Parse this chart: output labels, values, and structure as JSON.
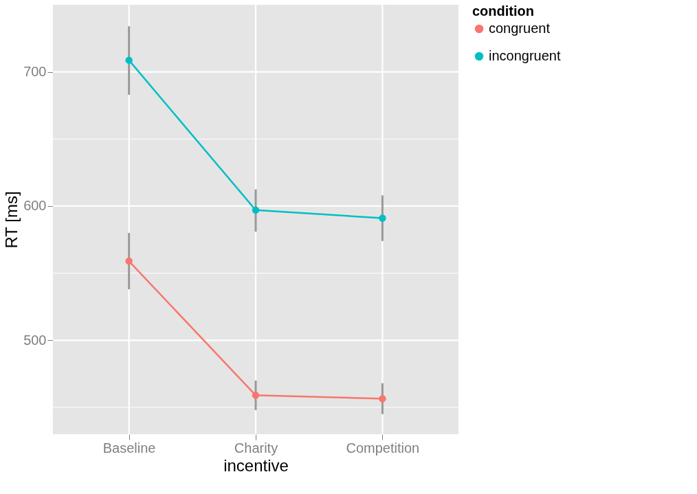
{
  "chart_data": {
    "type": "line",
    "xlabel": "incentive",
    "ylabel": "RT [ms]",
    "legend_title": "condition",
    "legend": "right",
    "marker": "circle",
    "line_style": "solid",
    "grid": true,
    "categories": [
      "Baseline",
      "Charity",
      "Competition"
    ],
    "ylim": [
      430,
      750
    ],
    "yticks": [
      {
        "value": 450,
        "label": null
      },
      500,
      {
        "value": 550,
        "label": null
      },
      600,
      {
        "value": 650,
        "label": null
      },
      700
    ],
    "series": [
      {
        "name": "congruent",
        "color": "#f8766d",
        "values": [
          559,
          459,
          456.5
        ],
        "errors": [
          [
            538,
            580
          ],
          [
            448,
            470
          ],
          [
            445,
            468
          ]
        ]
      },
      {
        "name": "incongruent",
        "color": "#00bfc4",
        "values": [
          708.7,
          597,
          591
        ],
        "errors": [
          [
            683,
            734
          ],
          [
            581,
            612.5
          ],
          [
            574,
            608
          ]
        ]
      }
    ]
  }
}
